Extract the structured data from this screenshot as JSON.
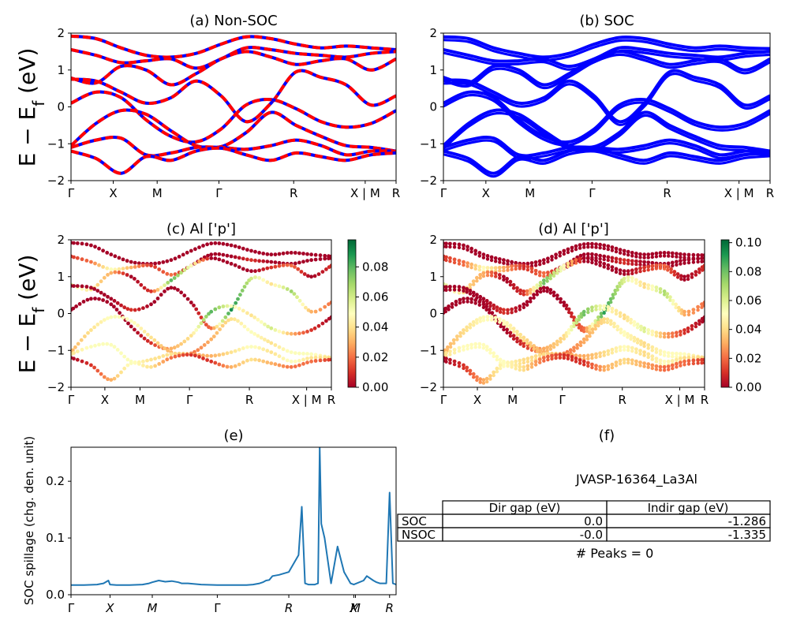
{
  "figure": {
    "ylabel_band": "E − E_f (eV)",
    "ylabel_main": "E − E",
    "ylabel_sub": "f",
    "ylabel_unit": " (eV)"
  },
  "chart_data": [
    {
      "id": "a",
      "type": "line",
      "title": "(a) Non-SOC",
      "ylim": [
        -2,
        2
      ],
      "yticks": [
        "2",
        "1",
        "0",
        "−1",
        "−2"
      ],
      "xticks": [
        "Γ",
        "X",
        "M",
        "Γ",
        "R",
        "X | M",
        "R"
      ],
      "colors": {
        "primary": "#0000ff",
        "overlay": "#ff0000"
      },
      "series": [
        {
          "values": [
            1.92,
            1.85,
            1.6,
            1.4,
            1.35,
            1.45,
            1.7,
            1.9,
            1.85,
            1.7,
            1.6,
            1.65,
            1.6,
            1.55
          ]
        },
        {
          "values": [
            1.55,
            1.4,
            1.2,
            1.25,
            1.3,
            1.05,
            1.3,
            1.6,
            1.55,
            1.45,
            1.4,
            1.35,
            1.45,
            1.5
          ]
        },
        {
          "values": [
            0.78,
            0.65,
            1.1,
            1.0,
            0.6,
            0.9,
            1.3,
            1.5,
            1.35,
            1.15,
            1.25,
            1.3,
            1.0,
            1.3
          ]
        },
        {
          "values": [
            0.75,
            0.7,
            0.4,
            0.1,
            0.25,
            0.7,
            0.3,
            -0.4,
            0.1,
            0.95,
            0.8,
            0.6,
            0.05,
            0.3
          ]
        },
        {
          "values": [
            0.1,
            0.4,
            0.25,
            -0.35,
            -0.8,
            -0.95,
            -0.6,
            0.05,
            0.2,
            -0.05,
            -0.4,
            -0.55,
            -0.45,
            -0.1
          ]
        },
        {
          "values": [
            -1.05,
            -0.45,
            -0.1,
            -0.2,
            -0.65,
            -1.05,
            -1.08,
            -0.7,
            -0.15,
            -0.5,
            -0.8,
            -1.05,
            -1.1,
            -1.2
          ]
        },
        {
          "values": [
            -1.1,
            -0.9,
            -0.85,
            -1.3,
            -1.25,
            -1.1,
            -1.1,
            -1.15,
            -1.05,
            -0.9,
            -1.05,
            -1.3,
            -1.2,
            -1.2
          ]
        },
        {
          "values": [
            -1.2,
            -1.4,
            -1.8,
            -1.35,
            -1.45,
            -1.2,
            -1.12,
            -1.3,
            -1.45,
            -1.25,
            -1.35,
            -1.45,
            -1.3,
            -1.25
          ]
        }
      ]
    },
    {
      "id": "b",
      "type": "line",
      "title": "(b) SOC",
      "ylim": [
        -2,
        2
      ],
      "yticks": [
        "2",
        "1",
        "0",
        "−1",
        "−2"
      ],
      "xticks": [
        "Γ",
        "X",
        "M",
        "Γ",
        "R",
        "X | M",
        "R"
      ],
      "colors": {
        "primary": "#0000ff"
      },
      "series": [
        {
          "values": [
            1.9,
            1.85,
            1.6,
            1.45,
            1.35,
            1.45,
            1.7,
            1.88,
            1.85,
            1.7,
            1.6,
            1.65,
            1.6,
            1.58
          ]
        },
        {
          "values": [
            1.55,
            1.4,
            1.25,
            1.25,
            1.3,
            1.1,
            1.3,
            1.6,
            1.55,
            1.45,
            1.4,
            1.35,
            1.45,
            1.5
          ]
        },
        {
          "values": [
            0.8,
            0.65,
            1.1,
            1.0,
            0.6,
            0.9,
            1.3,
            1.5,
            1.35,
            1.15,
            1.25,
            1.3,
            1.0,
            1.3
          ]
        },
        {
          "values": [
            0.72,
            0.7,
            0.4,
            0.1,
            0.25,
            0.7,
            0.3,
            -0.4,
            0.1,
            0.95,
            0.8,
            0.6,
            0.05,
            0.3
          ]
        },
        {
          "values": [
            0.1,
            0.4,
            0.25,
            -0.35,
            -0.8,
            -0.95,
            -0.6,
            0.05,
            0.2,
            -0.05,
            -0.4,
            -0.55,
            -0.45,
            -0.1
          ]
        },
        {
          "values": [
            -1.05,
            -0.45,
            -0.1,
            -0.2,
            -0.65,
            -1.05,
            -1.08,
            -0.7,
            -0.15,
            -0.5,
            -0.8,
            -1.05,
            -1.1,
            -1.2
          ]
        },
        {
          "values": [
            -1.1,
            -0.9,
            -0.85,
            -1.3,
            -1.25,
            -1.1,
            -1.1,
            -1.15,
            -1.05,
            -0.9,
            -1.05,
            -1.3,
            -1.2,
            -1.2
          ]
        },
        {
          "values": [
            -1.2,
            -1.4,
            -1.8,
            -1.35,
            -1.45,
            -1.2,
            -1.12,
            -1.3,
            -1.45,
            -1.25,
            -1.35,
            -1.45,
            -1.3,
            -1.25
          ]
        }
      ]
    },
    {
      "id": "c",
      "type": "scatter",
      "title": "(c)  Al ['p']",
      "ylim": [
        -2,
        2
      ],
      "yticks": [
        "2",
        "1",
        "0",
        "−1",
        "−2"
      ],
      "xticks": [
        "Γ",
        "X",
        "M",
        "Γ",
        "R",
        "X | M",
        "R"
      ],
      "colorbar": {
        "min": 0.0,
        "max": 0.098,
        "ticks": [
          "0.08",
          "0.06",
          "0.04",
          "0.02",
          "0.00"
        ],
        "tick_values": [
          0.08,
          0.06,
          0.04,
          0.02,
          0.0
        ]
      },
      "colors": {
        "low": "#a50026",
        "mid": "#ffffbf",
        "high": "#006837"
      },
      "weights": [
        [
          0.0,
          0.0,
          0.0,
          0.0,
          0.0,
          0.0,
          0.0,
          0.0,
          0.0,
          0.0,
          0.0,
          0.0,
          0.0,
          0.0
        ],
        [
          0.01,
          0.02,
          0.05,
          0.03,
          0.01,
          0.02,
          0.0,
          0.0,
          0.0,
          0.01,
          0.0,
          0.0,
          0.0,
          0.0
        ],
        [
          0.06,
          0.04,
          0.03,
          0.0,
          0.01,
          0.08,
          0.05,
          0.0,
          0.0,
          0.0,
          0.01,
          0.02,
          0.0,
          0.01
        ],
        [
          0.0,
          0.0,
          0.0,
          0.01,
          0.0,
          0.0,
          0.0,
          0.02,
          0.09,
          0.06,
          0.04,
          0.07,
          0.03,
          0.02
        ],
        [
          0.0,
          0.0,
          0.0,
          0.0,
          0.01,
          0.03,
          0.04,
          0.08,
          0.05,
          0.04,
          0.06,
          0.03,
          0.01,
          0.0
        ],
        [
          0.03,
          0.04,
          0.05,
          0.05,
          0.04,
          0.03,
          0.02,
          0.03,
          0.04,
          0.05,
          0.04,
          0.05,
          0.05,
          0.04
        ],
        [
          0.04,
          0.05,
          0.05,
          0.05,
          0.04,
          0.04,
          0.03,
          0.03,
          0.04,
          0.05,
          0.04,
          0.05,
          0.04,
          0.04
        ],
        [
          0.0,
          0.01,
          0.03,
          0.05,
          0.04,
          0.02,
          0.01,
          0.01,
          0.03,
          0.04,
          0.03,
          0.02,
          0.02,
          0.01
        ]
      ]
    },
    {
      "id": "d",
      "type": "scatter",
      "title": "(d) Al ['p']",
      "ylim": [
        -2,
        2
      ],
      "yticks": [
        "2",
        "1",
        "0",
        "−1",
        "−2"
      ],
      "xticks": [
        "Γ",
        "X",
        "M",
        "Γ",
        "R",
        "X | M",
        "R"
      ],
      "colorbar": {
        "min": 0.0,
        "max": 0.102,
        "ticks": [
          "0.10",
          "0.08",
          "0.06",
          "0.04",
          "0.02",
          "0.00"
        ],
        "tick_values": [
          0.1,
          0.08,
          0.06,
          0.04,
          0.02,
          0.0
        ]
      },
      "colors": {
        "low": "#a50026",
        "mid": "#ffffbf",
        "high": "#006837"
      },
      "weights": [
        [
          0.0,
          0.0,
          0.0,
          0.0,
          0.0,
          0.0,
          0.0,
          0.0,
          0.0,
          0.0,
          0.0,
          0.0,
          0.0,
          0.0
        ],
        [
          0.01,
          0.02,
          0.05,
          0.03,
          0.01,
          0.02,
          0.0,
          0.0,
          0.0,
          0.01,
          0.0,
          0.0,
          0.0,
          0.0
        ],
        [
          0.06,
          0.04,
          0.03,
          0.0,
          0.01,
          0.08,
          0.05,
          0.0,
          0.0,
          0.0,
          0.01,
          0.02,
          0.0,
          0.01
        ],
        [
          0.0,
          0.0,
          0.0,
          0.01,
          0.0,
          0.0,
          0.0,
          0.02,
          0.09,
          0.06,
          0.04,
          0.07,
          0.03,
          0.02
        ],
        [
          0.0,
          0.0,
          0.0,
          0.0,
          0.01,
          0.03,
          0.04,
          0.08,
          0.05,
          0.04,
          0.06,
          0.03,
          0.01,
          0.0
        ],
        [
          0.03,
          0.04,
          0.05,
          0.05,
          0.04,
          0.03,
          0.02,
          0.03,
          0.04,
          0.05,
          0.04,
          0.05,
          0.05,
          0.04
        ],
        [
          0.04,
          0.05,
          0.05,
          0.05,
          0.04,
          0.04,
          0.03,
          0.03,
          0.04,
          0.05,
          0.04,
          0.05,
          0.04,
          0.04
        ],
        [
          0.0,
          0.01,
          0.03,
          0.05,
          0.04,
          0.02,
          0.01,
          0.01,
          0.03,
          0.04,
          0.03,
          0.02,
          0.02,
          0.01
        ]
      ]
    },
    {
      "id": "e",
      "type": "line",
      "title": "(e)",
      "ylabel": "SOC spillage (chg. den. unit)",
      "ylim": [
        0,
        0.26
      ],
      "yticks": [
        "0.2",
        "0.1",
        "0.0"
      ],
      "ytick_values": [
        0.2,
        0.1,
        0.0
      ],
      "xticks": [
        "Γ",
        "X",
        "M",
        "Γ",
        "R",
        "X",
        "M",
        "R"
      ],
      "xtick_positions": [
        0,
        0.12,
        0.25,
        0.45,
        0.67,
        0.87,
        0.875,
        0.98
      ],
      "color": "#1f77b4",
      "x": [
        0,
        0.04,
        0.08,
        0.1,
        0.115,
        0.12,
        0.14,
        0.18,
        0.22,
        0.24,
        0.25,
        0.27,
        0.29,
        0.31,
        0.33,
        0.34,
        0.36,
        0.4,
        0.45,
        0.5,
        0.54,
        0.56,
        0.58,
        0.59,
        0.6,
        0.61,
        0.62,
        0.64,
        0.67,
        0.7,
        0.71,
        0.72,
        0.73,
        0.745,
        0.75,
        0.76,
        0.765,
        0.77,
        0.78,
        0.8,
        0.82,
        0.84,
        0.85,
        0.86,
        0.87,
        0.9,
        0.91,
        0.93,
        0.94,
        0.95,
        0.96,
        0.97,
        0.98,
        0.99,
        1.0
      ],
      "y": [
        0.017,
        0.017,
        0.018,
        0.02,
        0.025,
        0.018,
        0.017,
        0.017,
        0.018,
        0.02,
        0.022,
        0.025,
        0.023,
        0.024,
        0.022,
        0.02,
        0.02,
        0.018,
        0.017,
        0.017,
        0.017,
        0.018,
        0.02,
        0.022,
        0.025,
        0.026,
        0.033,
        0.035,
        0.04,
        0.07,
        0.155,
        0.02,
        0.018,
        0.018,
        0.018,
        0.02,
        0.26,
        0.125,
        0.1,
        0.02,
        0.085,
        0.04,
        0.03,
        0.02,
        0.018,
        0.025,
        0.033,
        0.025,
        0.022,
        0.02,
        0.02,
        0.02,
        0.18,
        0.02,
        0.018
      ]
    }
  ],
  "panel_f": {
    "title": "(f)",
    "caption": "JVASP-16364_La3Al",
    "table": {
      "headers": [
        "",
        "Dir gap (eV)",
        "Indir gap (eV)"
      ],
      "rows": [
        [
          "SOC",
          "0.0",
          "-1.286"
        ],
        [
          "NSOC",
          "-0.0",
          "-1.335"
        ]
      ]
    },
    "footer": "# Peaks = 0"
  }
}
